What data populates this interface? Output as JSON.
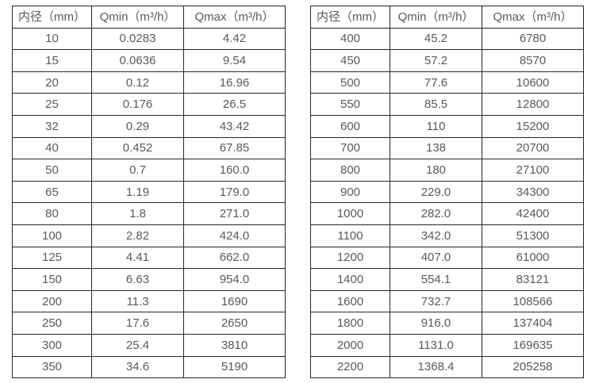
{
  "tables": [
    {
      "name": "small-diameter-flow-table",
      "headers": [
        "内径（mm）",
        "Qmin（m³/h）",
        "Qmax（m³/h）"
      ],
      "rows": [
        [
          "10",
          "0.0283",
          "4.42"
        ],
        [
          "15",
          "0.0636",
          "9.54"
        ],
        [
          "20",
          "0.12",
          "16.96"
        ],
        [
          "25",
          "0.176",
          "26.5"
        ],
        [
          "32",
          "0.29",
          "43.42"
        ],
        [
          "40",
          "0.452",
          "67.85"
        ],
        [
          "50",
          "0.7",
          "160.0"
        ],
        [
          "65",
          "1.19",
          "179.0"
        ],
        [
          "80",
          "1.8",
          "271.0"
        ],
        [
          "100",
          "2.82",
          "424.0"
        ],
        [
          "125",
          "4.41",
          "662.0"
        ],
        [
          "150",
          "6.63",
          "954.0"
        ],
        [
          "200",
          "11.3",
          "1690"
        ],
        [
          "250",
          "17.6",
          "2650"
        ],
        [
          "300",
          "25.4",
          "3810"
        ],
        [
          "350",
          "34.6",
          "5190"
        ]
      ]
    },
    {
      "name": "large-diameter-flow-table",
      "headers": [
        "内径（mm）",
        "Qmin（m³/h）",
        "Qmax（m³/h）"
      ],
      "rows": [
        [
          "400",
          "45.2",
          "6780"
        ],
        [
          "450",
          "57.2",
          "8570"
        ],
        [
          "500",
          "77.6",
          "10600"
        ],
        [
          "550",
          "85.5",
          "12800"
        ],
        [
          "600",
          "110",
          "15200"
        ],
        [
          "700",
          "138",
          "20700"
        ],
        [
          "800",
          "180",
          "27100"
        ],
        [
          "900",
          "229.0",
          "34300"
        ],
        [
          "1000",
          "282.0",
          "42400"
        ],
        [
          "1100",
          "342.0",
          "51300"
        ],
        [
          "1200",
          "407.0",
          "61000"
        ],
        [
          "1400",
          "554.1",
          "83121"
        ],
        [
          "1600",
          "732.7",
          "108566"
        ],
        [
          "1800",
          "916.0",
          "137404"
        ],
        [
          "2000",
          "1131.0",
          "169635"
        ],
        [
          "2200",
          "1368.4",
          "205258"
        ]
      ]
    }
  ],
  "colors": {
    "border": "#262626",
    "text": "#595959",
    "background": "#ffffff"
  }
}
